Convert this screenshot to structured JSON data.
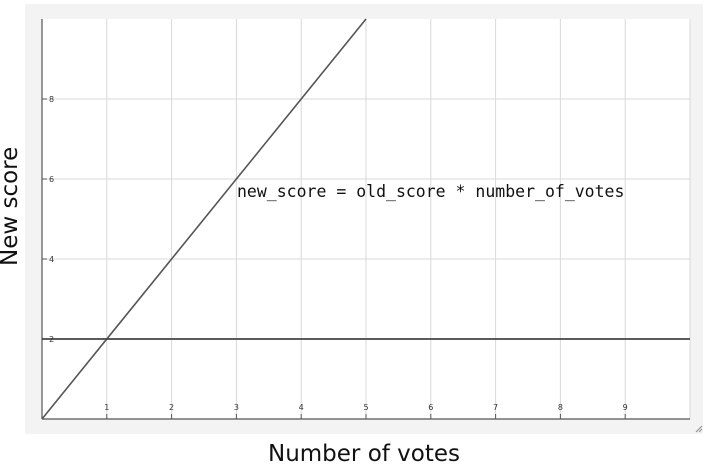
{
  "chart_data": {
    "type": "line",
    "title": "",
    "xlabel": "Number of votes",
    "ylabel": "New score",
    "xlim": [
      0,
      10
    ],
    "ylim": [
      0,
      10
    ],
    "x_ticks": [
      1,
      2,
      3,
      4,
      5,
      6,
      7,
      8,
      9
    ],
    "y_ticks": [
      2,
      4,
      6,
      8
    ],
    "grid": true,
    "legend": "none",
    "annotation": "new_score = old_score * number_of_votes",
    "series": [
      {
        "x": [
          0,
          5
        ],
        "y": [
          0,
          10
        ],
        "color": "#555555"
      },
      {
        "x": [
          0,
          10
        ],
        "y": [
          2,
          2
        ],
        "color": "#444444"
      }
    ]
  },
  "colors": {
    "frame_background": "#f3f3f3",
    "plot_background": "#ffffff",
    "grid": "#d9d9d9",
    "axis": "#555555"
  },
  "icons": {
    "resize_grip": "resize-grip-icon"
  }
}
